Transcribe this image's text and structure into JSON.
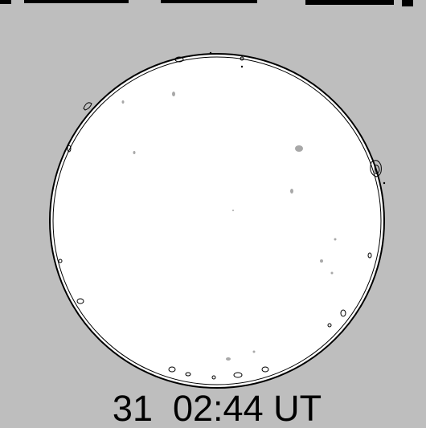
{
  "timestamp": "31  02:44 UT"
}
